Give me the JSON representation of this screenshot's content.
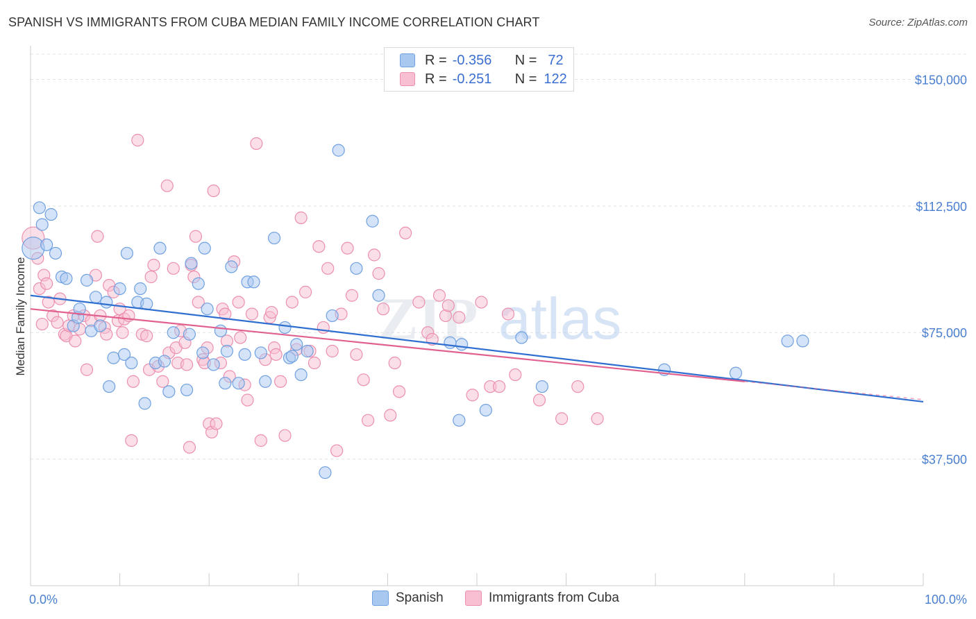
{
  "header": {
    "title": "SPANISH VS IMMIGRANTS FROM CUBA MEDIAN FAMILY INCOME CORRELATION CHART",
    "source": "Source: ZipAtlas.com"
  },
  "legend": {
    "r_label": "R =",
    "n_label": "N =",
    "rows": [
      {
        "r": "-0.356",
        "n": "72"
      },
      {
        "r": "-0.251",
        "n": "122"
      }
    ]
  },
  "watermark": {
    "part1": "ZIP",
    "part2": "atlas"
  },
  "colors": {
    "blue_fill": "#a9c8f0",
    "blue_stroke": "#6fa0e0",
    "blue_line": "#2f6fd0",
    "pink_fill": "#f7bfd1",
    "pink_stroke": "#ec8fae",
    "pink_line": "#e0608f",
    "tick_text": "#4a7fd0",
    "grid": "#e2e2e2"
  },
  "chart_data": {
    "type": "scatter",
    "title": "SPANISH VS IMMIGRANTS FROM CUBA MEDIAN FAMILY INCOME CORRELATION CHART",
    "xlabel": "",
    "ylabel": "Median Family Income",
    "xlim": [
      0,
      100
    ],
    "ylim": [
      0,
      157500
    ],
    "x_tick_labels": [
      "0.0%",
      "100.0%"
    ],
    "y_ticks": [
      {
        "value": 150000,
        "label": "$150,000"
      },
      {
        "value": 112500,
        "label": "$112,500"
      },
      {
        "value": 75000,
        "label": "$75,000"
      },
      {
        "value": 37500,
        "label": "$37,500"
      }
    ],
    "grid": true,
    "legend_position": "bottom",
    "series": [
      {
        "name": "Spanish",
        "r": -0.356,
        "n": 72,
        "trend": {
          "x0": 0,
          "y0": 86000,
          "x1": 100,
          "y1": 54500
        },
        "points": [
          [
            0.3,
            100000
          ],
          [
            1.0,
            112000
          ],
          [
            1.3,
            107000
          ],
          [
            1.8,
            101000
          ],
          [
            2.3,
            110000
          ],
          [
            2.8,
            98500
          ],
          [
            3.5,
            91500
          ],
          [
            4.0,
            91000
          ],
          [
            4.8,
            77000
          ],
          [
            5.3,
            79500
          ],
          [
            5.5,
            82000
          ],
          [
            6.3,
            90500
          ],
          [
            6.8,
            75500
          ],
          [
            7.3,
            85500
          ],
          [
            7.8,
            77000
          ],
          [
            8.5,
            84000
          ],
          [
            8.8,
            59000
          ],
          [
            9.3,
            67500
          ],
          [
            10.0,
            88000
          ],
          [
            10.5,
            68500
          ],
          [
            10.8,
            98500
          ],
          [
            11.3,
            66000
          ],
          [
            12.0,
            84000
          ],
          [
            12.3,
            88000
          ],
          [
            12.8,
            54000
          ],
          [
            13.0,
            83500
          ],
          [
            14.0,
            66000
          ],
          [
            14.5,
            100000
          ],
          [
            15.0,
            66500
          ],
          [
            15.5,
            57500
          ],
          [
            16.0,
            75000
          ],
          [
            17.5,
            58000
          ],
          [
            17.8,
            74500
          ],
          [
            18.0,
            95500
          ],
          [
            18.8,
            89500
          ],
          [
            19.3,
            69000
          ],
          [
            19.5,
            100000
          ],
          [
            19.8,
            82000
          ],
          [
            20.5,
            65500
          ],
          [
            21.3,
            75500
          ],
          [
            21.8,
            60000
          ],
          [
            22.0,
            69500
          ],
          [
            22.5,
            94500
          ],
          [
            23.3,
            60000
          ],
          [
            24.0,
            68500
          ],
          [
            24.3,
            90000
          ],
          [
            25.0,
            90000
          ],
          [
            25.8,
            69000
          ],
          [
            26.3,
            60500
          ],
          [
            27.3,
            103000
          ],
          [
            28.5,
            76500
          ],
          [
            29.0,
            67500
          ],
          [
            29.3,
            68000
          ],
          [
            29.8,
            71500
          ],
          [
            30.3,
            62500
          ],
          [
            31.0,
            69500
          ],
          [
            33.0,
            33500
          ],
          [
            33.8,
            80000
          ],
          [
            34.5,
            129000
          ],
          [
            36.5,
            94000
          ],
          [
            38.3,
            108000
          ],
          [
            39.0,
            86000
          ],
          [
            47.0,
            72000
          ],
          [
            48.0,
            49000
          ],
          [
            48.3,
            71500
          ],
          [
            51.0,
            52000
          ],
          [
            55.0,
            73500
          ],
          [
            57.3,
            59000
          ],
          [
            71.0,
            64000
          ],
          [
            79.0,
            63000
          ],
          [
            84.8,
            72500
          ],
          [
            86.5,
            72500
          ]
        ]
      },
      {
        "name": "Immigrants from Cuba",
        "r": -0.251,
        "n": 122,
        "trend": {
          "x0": 0,
          "y0": 82000,
          "x1": 80,
          "y1": 60500
        },
        "points": [
          [
            0.3,
            103000
          ],
          [
            0.8,
            97000
          ],
          [
            1.0,
            88000
          ],
          [
            1.3,
            77500
          ],
          [
            1.5,
            92000
          ],
          [
            1.8,
            89500
          ],
          [
            2.0,
            84000
          ],
          [
            2.5,
            80000
          ],
          [
            3.0,
            78000
          ],
          [
            3.3,
            85000
          ],
          [
            3.8,
            74500
          ],
          [
            4.0,
            74000
          ],
          [
            4.3,
            77000
          ],
          [
            4.8,
            80000
          ],
          [
            5.0,
            72500
          ],
          [
            5.5,
            76000
          ],
          [
            6.0,
            80000
          ],
          [
            6.3,
            64000
          ],
          [
            6.8,
            78500
          ],
          [
            7.3,
            92000
          ],
          [
            7.5,
            103500
          ],
          [
            7.8,
            80000
          ],
          [
            8.3,
            76500
          ],
          [
            8.5,
            74500
          ],
          [
            8.8,
            89000
          ],
          [
            9.3,
            87000
          ],
          [
            9.8,
            78500
          ],
          [
            10.0,
            82000
          ],
          [
            10.3,
            75000
          ],
          [
            10.5,
            79000
          ],
          [
            11.0,
            80000
          ],
          [
            11.3,
            43000
          ],
          [
            11.5,
            60500
          ],
          [
            12.0,
            132000
          ],
          [
            12.5,
            74500
          ],
          [
            13.0,
            74000
          ],
          [
            13.3,
            64000
          ],
          [
            13.5,
            91500
          ],
          [
            13.8,
            95000
          ],
          [
            14.3,
            65000
          ],
          [
            14.8,
            60500
          ],
          [
            15.3,
            118500
          ],
          [
            15.5,
            69000
          ],
          [
            16.0,
            94000
          ],
          [
            16.3,
            70500
          ],
          [
            16.5,
            66000
          ],
          [
            16.8,
            75500
          ],
          [
            17.3,
            72000
          ],
          [
            17.5,
            65500
          ],
          [
            17.8,
            41000
          ],
          [
            18.0,
            95000
          ],
          [
            18.3,
            91500
          ],
          [
            18.5,
            103500
          ],
          [
            18.8,
            84000
          ],
          [
            19.3,
            67000
          ],
          [
            19.5,
            66000
          ],
          [
            19.8,
            70500
          ],
          [
            20.0,
            48000
          ],
          [
            20.3,
            45500
          ],
          [
            20.5,
            117000
          ],
          [
            20.8,
            48000
          ],
          [
            21.3,
            66000
          ],
          [
            21.5,
            82000
          ],
          [
            21.8,
            80500
          ],
          [
            22.0,
            72500
          ],
          [
            22.3,
            62000
          ],
          [
            22.8,
            96000
          ],
          [
            23.3,
            84000
          ],
          [
            23.5,
            73500
          ],
          [
            24.0,
            59500
          ],
          [
            24.3,
            55000
          ],
          [
            24.8,
            80500
          ],
          [
            25.3,
            131000
          ],
          [
            25.8,
            43000
          ],
          [
            26.3,
            67000
          ],
          [
            26.8,
            79500
          ],
          [
            27.0,
            81000
          ],
          [
            27.3,
            70500
          ],
          [
            27.5,
            68500
          ],
          [
            28.0,
            60500
          ],
          [
            28.5,
            44500
          ],
          [
            29.3,
            84000
          ],
          [
            29.8,
            70000
          ],
          [
            30.3,
            109000
          ],
          [
            30.8,
            87000
          ],
          [
            31.3,
            69500
          ],
          [
            31.8,
            66000
          ],
          [
            32.3,
            100500
          ],
          [
            32.8,
            76500
          ],
          [
            33.3,
            94000
          ],
          [
            33.8,
            69500
          ],
          [
            34.3,
            40000
          ],
          [
            34.8,
            80500
          ],
          [
            35.5,
            100000
          ],
          [
            36.0,
            86000
          ],
          [
            36.5,
            68500
          ],
          [
            37.3,
            61000
          ],
          [
            37.8,
            49000
          ],
          [
            38.5,
            98000
          ],
          [
            39.0,
            92500
          ],
          [
            39.5,
            82000
          ],
          [
            40.3,
            50500
          ],
          [
            40.8,
            66000
          ],
          [
            41.3,
            57500
          ],
          [
            42.0,
            104500
          ],
          [
            43.5,
            84000
          ],
          [
            44.5,
            75000
          ],
          [
            45.0,
            73000
          ],
          [
            45.8,
            86000
          ],
          [
            46.5,
            80000
          ],
          [
            46.8,
            83000
          ],
          [
            48.0,
            79500
          ],
          [
            49.5,
            56500
          ],
          [
            50.5,
            84000
          ],
          [
            51.5,
            59000
          ],
          [
            52.5,
            59000
          ],
          [
            53.5,
            80500
          ],
          [
            54.3,
            62500
          ],
          [
            57.0,
            55000
          ],
          [
            59.5,
            49500
          ],
          [
            61.3,
            59000
          ],
          [
            63.5,
            49500
          ]
        ]
      }
    ]
  },
  "bottom_legend": [
    "Spanish",
    "Immigrants from Cuba"
  ]
}
